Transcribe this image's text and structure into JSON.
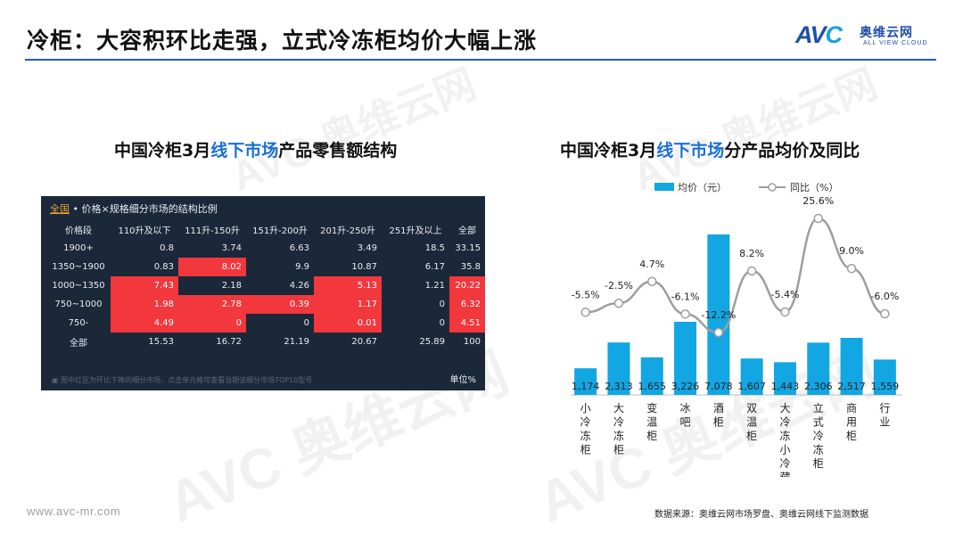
{
  "title": "冷柜：大容积环比走强，立式冷冻柜均价大幅上涨",
  "logo": {
    "mark_a": "AV",
    "mark_c": "C",
    "cn": "奥维云网",
    "en": "ALL VIEW CLOUD"
  },
  "watermark": {
    "cn_line": "AVC 奥维云网",
    "en_line": "ALL VIEW CLOUD"
  },
  "left_panel": {
    "title_prefix": "中国冷柜3月",
    "title_highlight": "线下市场",
    "title_suffix": "产品零售额结构",
    "table": {
      "scope_label": "全国",
      "caption": " • 价格×规格细分市场的结构比例",
      "header": [
        "价格段",
        "110升及以下",
        "111升-150升",
        "151升-200升",
        "201升-250升",
        "251升及以上",
        "全部"
      ],
      "rows": [
        {
          "label": "1900+",
          "cells": [
            "0.8",
            "3.74",
            "6.63",
            "3.49",
            "18.5",
            "33.15"
          ],
          "hot": [
            false,
            false,
            false,
            false,
            false,
            false
          ]
        },
        {
          "label": "1350~1900",
          "cells": [
            "0.83",
            "8.02",
            "9.9",
            "10.87",
            "6.17",
            "35.8"
          ],
          "hot": [
            false,
            true,
            false,
            false,
            false,
            false
          ]
        },
        {
          "label": "1000~1350",
          "cells": [
            "7.43",
            "2.18",
            "4.26",
            "5.13",
            "1.21",
            "20.22"
          ],
          "hot": [
            true,
            false,
            false,
            true,
            false,
            true
          ]
        },
        {
          "label": "750~1000",
          "cells": [
            "1.98",
            "2.78",
            "0.39",
            "1.17",
            "0",
            "6.32"
          ],
          "hot": [
            true,
            true,
            true,
            true,
            false,
            true
          ]
        },
        {
          "label": "750-",
          "cells": [
            "4.49",
            "0",
            "0",
            "0.01",
            "0",
            "4.51"
          ],
          "hot": [
            true,
            true,
            false,
            true,
            false,
            true
          ]
        },
        {
          "label": "全部",
          "cells": [
            "15.53",
            "16.72",
            "21.19",
            "20.67",
            "25.89",
            "100"
          ],
          "hot": [
            false,
            false,
            false,
            false,
            false,
            false
          ]
        }
      ],
      "footnote": "图中红区为环比下降的细分市场，点击单元格可查看当期该细分市场TOP10型号",
      "unit": "单位%",
      "hot_color": "#f2373d",
      "bg_color": "#1b2839"
    }
  },
  "right_panel": {
    "title_prefix": "中国冷柜3月",
    "title_highlight": "线下市场",
    "title_suffix": "分产品均价及同比"
  },
  "chart_data": {
    "type": "bar",
    "categories": [
      "小冷冻柜",
      "大冷冻柜",
      "变温柜",
      "冰吧",
      "酒柜",
      "双温柜",
      "大冷冻小冷藏",
      "立式冷冻柜",
      "商用柜",
      "行业"
    ],
    "series": [
      {
        "name": "均价（元）",
        "type": "bar",
        "values": [
          1174,
          2313,
          1655,
          3226,
          7078,
          1607,
          1443,
          2306,
          2517,
          1559
        ],
        "labels": [
          "1,174",
          "2,313",
          "1,655",
          "3,226",
          "7,078",
          "1,607",
          "1,443",
          "2,306",
          "2,517",
          "1,559"
        ],
        "color": "#12a6e3"
      },
      {
        "name": "同比（%）",
        "type": "line",
        "values": [
          -5.5,
          -2.5,
          4.7,
          -6.1,
          -12.2,
          8.2,
          -5.4,
          25.6,
          9.0,
          -6.0
        ],
        "labels": [
          "-5.5%",
          "-2.5%",
          "4.7%",
          "-6.1%",
          "-12.2%",
          "8.2%",
          "-5.4%",
          "25.6%",
          "9.0%",
          "-6.0%"
        ],
        "color": "#9e9e9e"
      }
    ],
    "legend_position": "top",
    "grid": false
  },
  "footer": {
    "url": "www.avc-mr.com",
    "source": "数据来源：奥维云网市场罗盘、奥维云网线下监测数据"
  }
}
